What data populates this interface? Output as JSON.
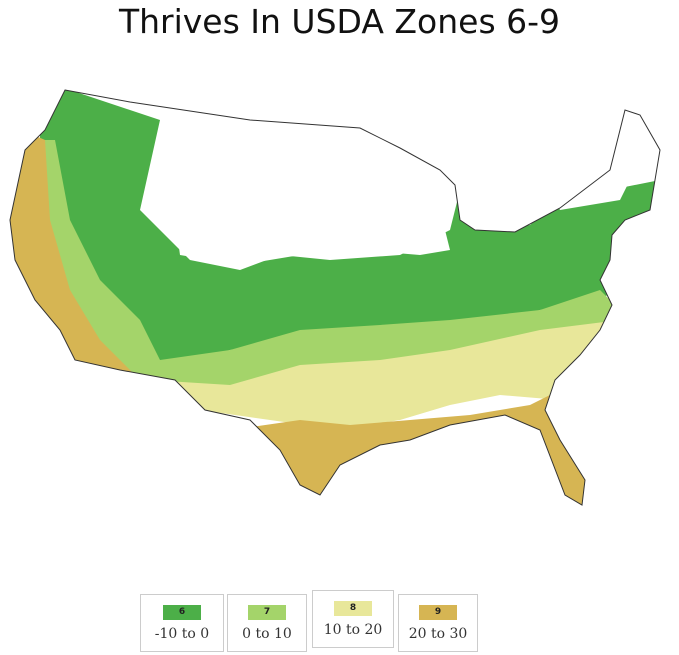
{
  "title": "Thrives In USDA Zones 6-9",
  "legend": [
    {
      "zone": "6",
      "range": "-10 to 0",
      "color": "#4caf48"
    },
    {
      "zone": "7",
      "range": "0 to 10",
      "color": "#a4d46a"
    },
    {
      "zone": "8",
      "range": "10 to 20",
      "color": "#e8e79a"
    },
    {
      "zone": "9",
      "range": "20 to 30",
      "color": "#d6b553"
    }
  ]
}
